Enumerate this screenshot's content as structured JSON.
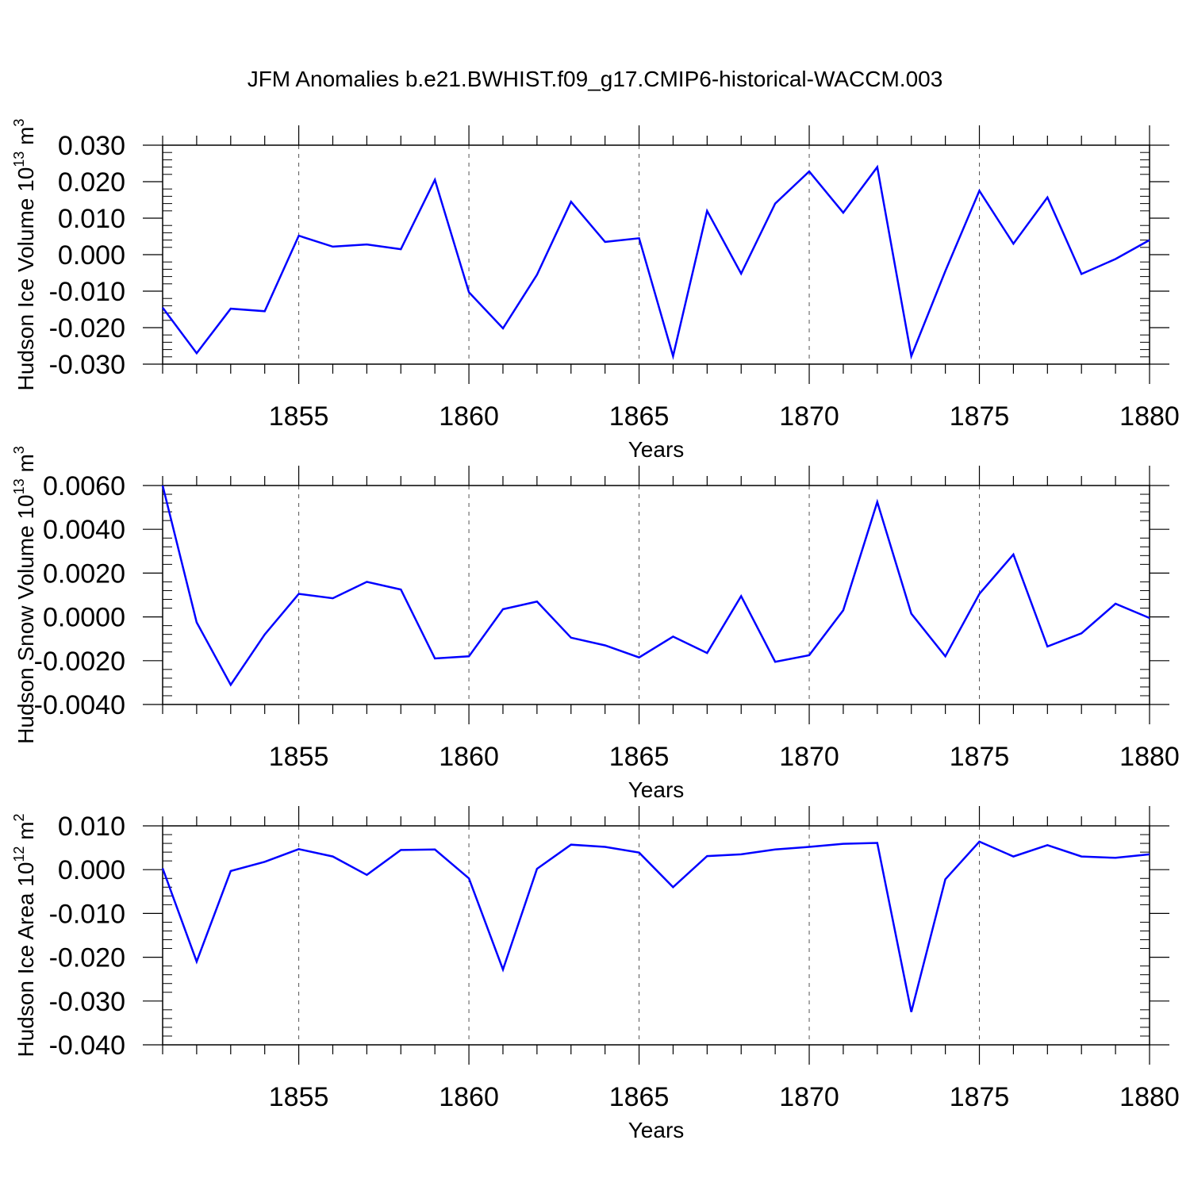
{
  "title": "JFM Anomalies b.e21.BWHIST.f09_g17.CMIP6-historical-WACCM.003",
  "colors": {
    "line": "#0000ff",
    "axis": "#000000",
    "grid": "#555555"
  },
  "chart_data": [
    {
      "type": "line",
      "ylabel": "Hudson Ice Volume 10",
      "ylabel_exponent": "13",
      "ylabel_unit": "m",
      "ylabel_unit_exponent": "3",
      "xlabel": "Years",
      "xlim": [
        1851,
        1880
      ],
      "ylim": [
        -0.03,
        0.03
      ],
      "x_ticks": [
        1855,
        1860,
        1865,
        1870,
        1875,
        1880
      ],
      "y_ticks": [
        -0.03,
        -0.02,
        -0.01,
        0.0,
        0.01,
        0.02,
        0.03
      ],
      "y_tick_labels": [
        "-0.030",
        "-0.020",
        "-0.010",
        "0.000",
        "0.010",
        "0.020",
        "0.030"
      ],
      "grid": "vertical dashed at major x ticks",
      "x": [
        1851,
        1852,
        1853,
        1854,
        1855,
        1856,
        1857,
        1858,
        1859,
        1860,
        1861,
        1862,
        1863,
        1864,
        1865,
        1866,
        1867,
        1868,
        1869,
        1870,
        1871,
        1872,
        1873,
        1874,
        1875,
        1876,
        1877,
        1878,
        1879,
        1880
      ],
      "values": [
        -0.0145,
        -0.027,
        -0.0148,
        -0.0155,
        0.0052,
        0.0022,
        0.0028,
        0.0015,
        0.0205,
        -0.0103,
        -0.0202,
        -0.0055,
        0.0145,
        0.0035,
        0.0045,
        -0.0278,
        0.012,
        -0.0052,
        0.014,
        0.0228,
        0.0115,
        0.024,
        -0.0278,
        -0.0045,
        0.0175,
        0.003,
        0.0157,
        -0.0053,
        -0.0012,
        0.004
      ]
    },
    {
      "type": "line",
      "ylabel": "Hudson Snow Volume 10",
      "ylabel_exponent": "13",
      "ylabel_unit": "m",
      "ylabel_unit_exponent": "3",
      "xlabel": "Years",
      "xlim": [
        1851,
        1880
      ],
      "ylim": [
        -0.004,
        0.006
      ],
      "x_ticks": [
        1855,
        1860,
        1865,
        1870,
        1875,
        1880
      ],
      "y_ticks": [
        -0.004,
        -0.002,
        0.0,
        0.002,
        0.004,
        0.006
      ],
      "y_tick_labels": [
        "-0.0040",
        "-0.0020",
        "0.0000",
        "0.0020",
        "0.0040",
        "0.0060"
      ],
      "grid": "vertical dashed at major x ticks",
      "x": [
        1851,
        1852,
        1853,
        1854,
        1855,
        1856,
        1857,
        1858,
        1859,
        1860,
        1861,
        1862,
        1863,
        1864,
        1865,
        1866,
        1867,
        1868,
        1869,
        1870,
        1871,
        1872,
        1873,
        1874,
        1875,
        1876,
        1877,
        1878,
        1879,
        1880
      ],
      "values": [
        0.006,
        -0.00025,
        -0.0031,
        -0.0008,
        0.00105,
        0.00085,
        0.0016,
        0.00125,
        -0.0019,
        -0.0018,
        0.00035,
        0.0007,
        -0.00095,
        -0.0013,
        -0.00185,
        -0.0009,
        -0.00165,
        0.00095,
        -0.00205,
        -0.00175,
        0.0003,
        0.00525,
        0.00015,
        -0.0018,
        0.00105,
        0.00285,
        -0.00135,
        -0.00075,
        0.0006,
        -5e-05
      ]
    },
    {
      "type": "line",
      "ylabel": "Hudson Ice Area 10",
      "ylabel_exponent": "12",
      "ylabel_unit": "m",
      "ylabel_unit_exponent": "2",
      "xlabel": "Years",
      "xlim": [
        1851,
        1880
      ],
      "ylim": [
        -0.04,
        0.01
      ],
      "x_ticks": [
        1855,
        1860,
        1865,
        1870,
        1875,
        1880
      ],
      "y_ticks": [
        -0.04,
        -0.03,
        -0.02,
        -0.01,
        0.0,
        0.01
      ],
      "y_tick_labels": [
        "-0.040",
        "-0.030",
        "-0.020",
        "-0.010",
        "0.000",
        "0.010"
      ],
      "grid": "vertical dashed at major x ticks",
      "x": [
        1851,
        1852,
        1853,
        1854,
        1855,
        1856,
        1857,
        1858,
        1859,
        1860,
        1861,
        1862,
        1863,
        1864,
        1865,
        1866,
        1867,
        1868,
        1869,
        1870,
        1871,
        1872,
        1873,
        1874,
        1875,
        1876,
        1877,
        1878,
        1879,
        1880
      ],
      "values": [
        0.0003,
        -0.021,
        -0.0003,
        0.0018,
        0.0047,
        0.003,
        -0.0012,
        0.0045,
        0.0046,
        -0.002,
        -0.0228,
        0.0002,
        0.0057,
        0.0052,
        0.0039,
        -0.004,
        0.0031,
        0.0035,
        0.0046,
        0.0052,
        0.0059,
        0.0061,
        -0.0325,
        -0.0022,
        0.0064,
        0.003,
        0.0056,
        0.003,
        0.0027,
        0.0035
      ]
    }
  ]
}
